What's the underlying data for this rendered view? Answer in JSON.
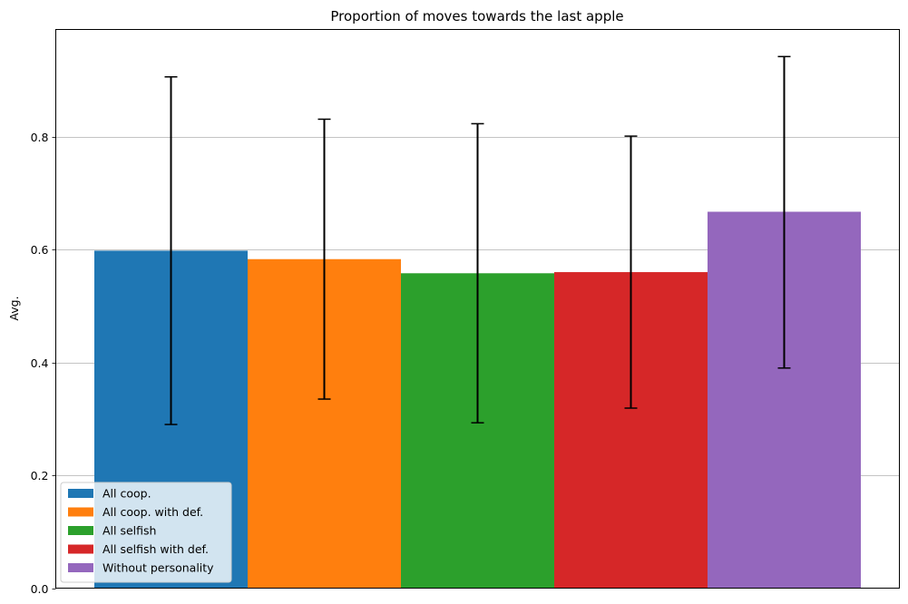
{
  "chart_data": {
    "type": "bar",
    "title": "Proportion of moves towards the last apple",
    "xlabel": "",
    "ylabel": "Avg.",
    "ylim": [
      0,
      0.99
    ],
    "yticks": [
      "0.0",
      "0.2",
      "0.4",
      "0.6",
      "0.8"
    ],
    "grid": "y",
    "legend_position": "lower-left",
    "series": [
      {
        "name": "All coop.",
        "value": 0.598,
        "err_low": 0.29,
        "err_high": 0.906,
        "color": "#1f77b4"
      },
      {
        "name": "All coop. with def.",
        "value": 0.583,
        "err_low": 0.335,
        "err_high": 0.831,
        "color": "#ff7f0e"
      },
      {
        "name": "All selfish",
        "value": 0.558,
        "err_low": 0.293,
        "err_high": 0.823,
        "color": "#2ca02c"
      },
      {
        "name": "All selfish with def.",
        "value": 0.56,
        "err_low": 0.319,
        "err_high": 0.801,
        "color": "#d62728"
      },
      {
        "name": "Without personality",
        "value": 0.667,
        "err_low": 0.39,
        "err_high": 0.942,
        "color": "#9467bd"
      }
    ]
  }
}
